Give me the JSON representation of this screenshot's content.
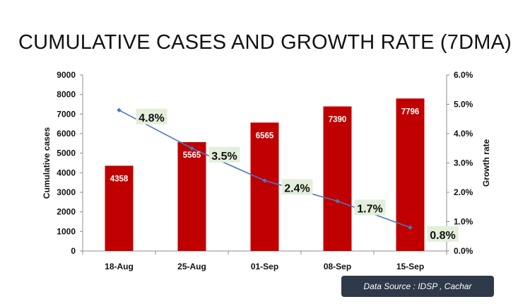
{
  "source_note": "Data Source : IDSP , Cachar",
  "chart_data": {
    "type": "bar",
    "title": "CUMULATIVE CASES AND GROWTH RATE (7DMA)",
    "categories": [
      "18-Aug",
      "25-Aug",
      "01-Sep",
      "08-Sep",
      "15-Sep"
    ],
    "ylabel": "Cumulative  cases",
    "y2label": "Growth rate",
    "ylim": [
      0,
      9000
    ],
    "y2lim": [
      0,
      6.0
    ],
    "yticks": [
      "0",
      "1000",
      "2000",
      "3000",
      "4000",
      "5000",
      "6000",
      "7000",
      "8000",
      "9000"
    ],
    "y2ticks": [
      "0.0%",
      "1.0%",
      "2.0%",
      "3.0%",
      "4.0%",
      "5.0%",
      "6.0%"
    ],
    "grid": false,
    "series": [
      {
        "kind": "bar",
        "values": [
          4358,
          5565,
          6565,
          7390,
          7796
        ],
        "labels": [
          "4358",
          "5565",
          "6565",
          "7390",
          "7796"
        ],
        "color": "#c00000"
      },
      {
        "kind": "line",
        "axis": "secondary",
        "values": [
          4.8,
          3.5,
          2.4,
          1.7,
          0.8
        ],
        "labels": [
          "4.8%",
          "3.5%",
          "2.4%",
          "1.7%",
          "0.8%"
        ],
        "color": "#4a76bd",
        "label_bg": "#e2efda"
      }
    ]
  }
}
